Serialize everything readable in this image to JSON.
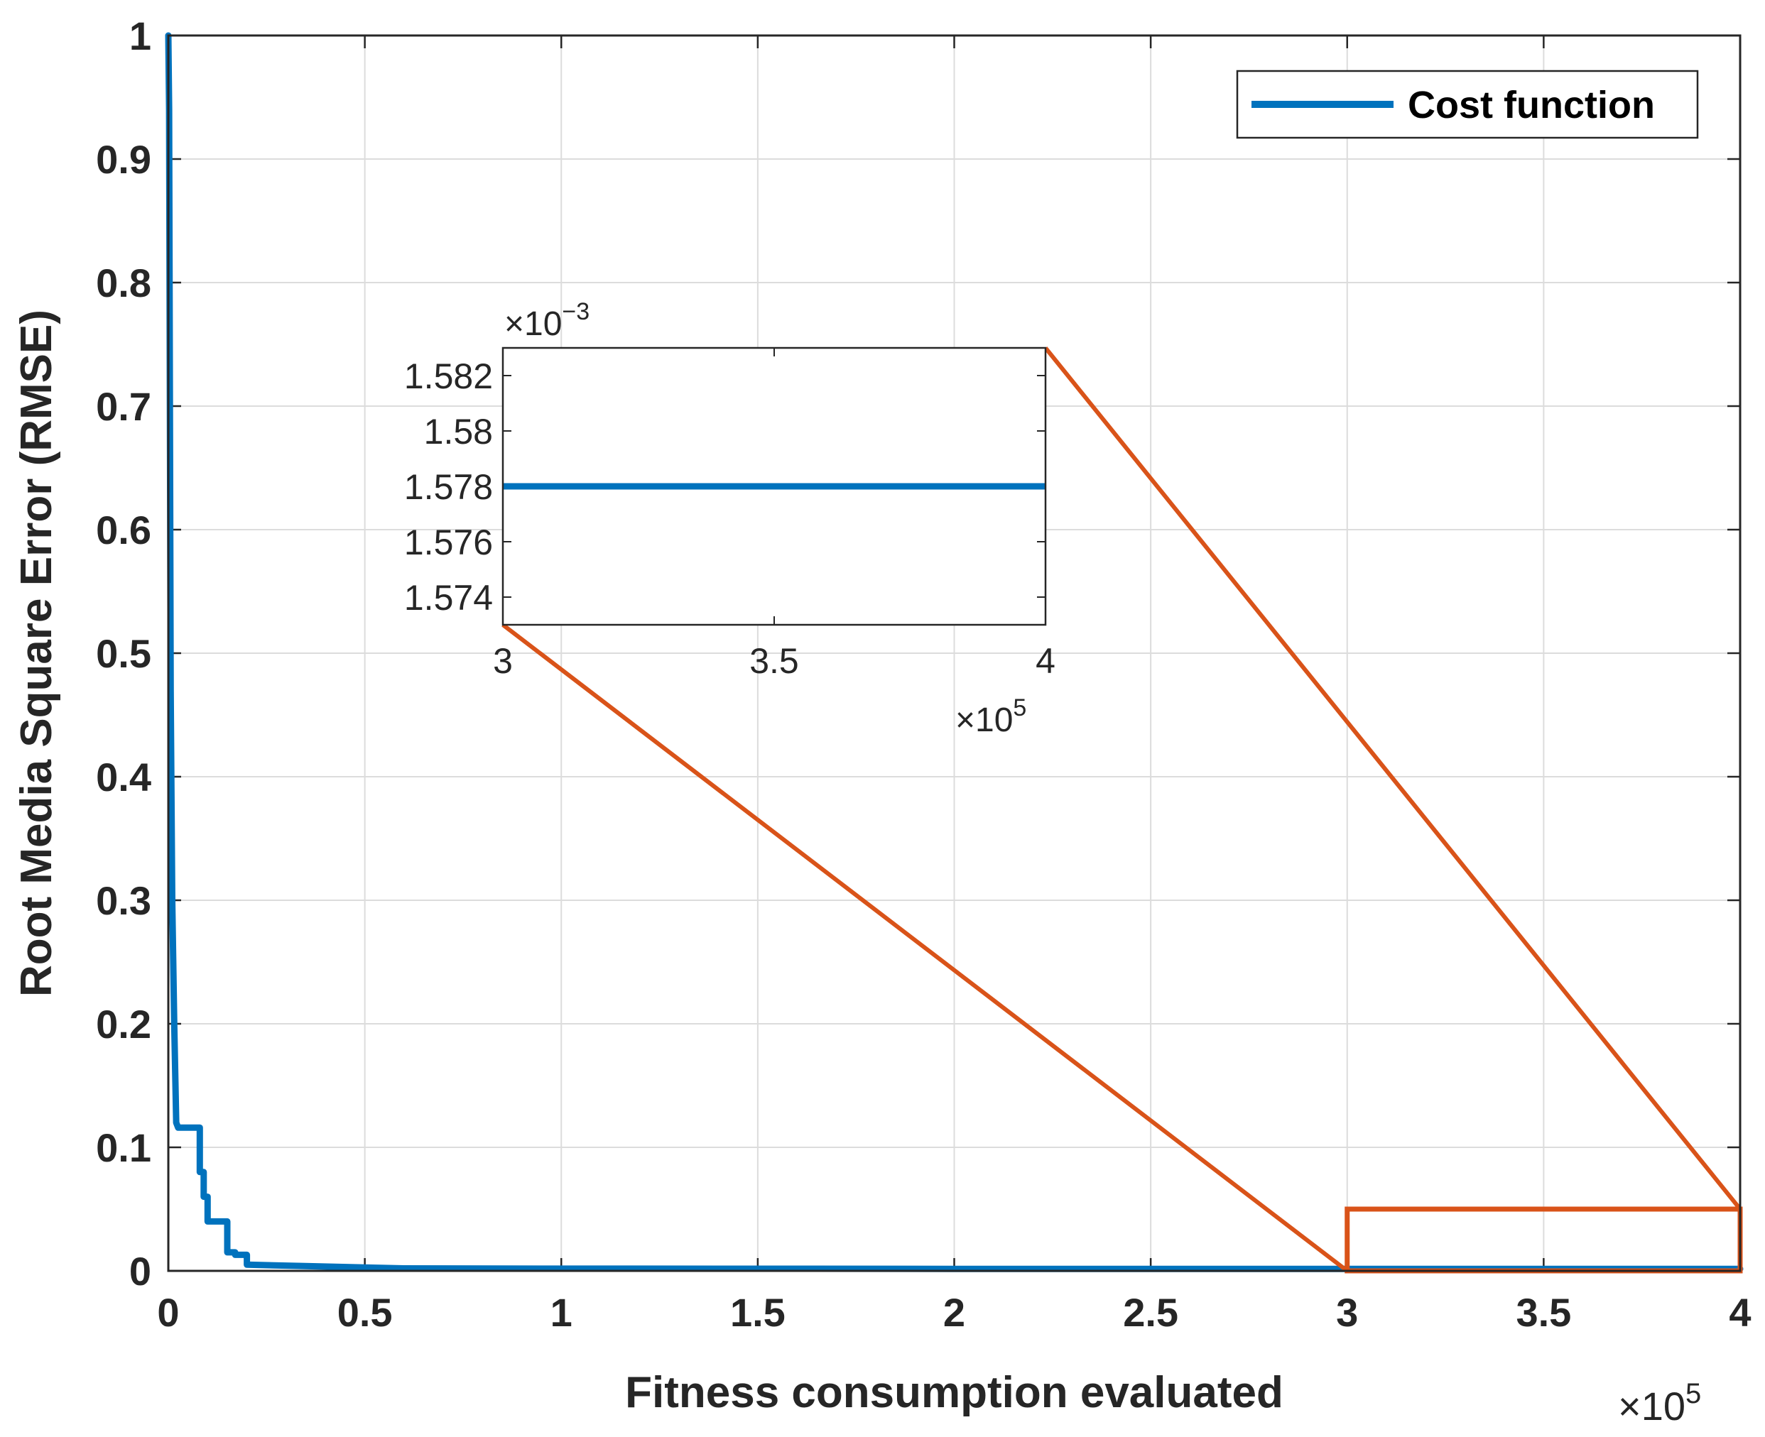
{
  "chart_data": [
    {
      "type": "line",
      "role": "main",
      "xlabel": "Fitness consumption evaluated",
      "ylabel": "Root Media Square Error (RMSE)",
      "x_multiplier": "×10",
      "x_multiplier_exp": "5",
      "xlim": [
        0,
        4
      ],
      "ylim": [
        0,
        1
      ],
      "grid": true,
      "x_ticks": [
        0,
        0.5,
        1,
        1.5,
        2,
        2.5,
        3,
        3.5,
        4
      ],
      "x_tick_labels": [
        "0",
        "0.5",
        "1",
        "1.5",
        "2",
        "2.5",
        "3",
        "3.5",
        "4"
      ],
      "y_ticks": [
        0,
        0.1,
        0.2,
        0.3,
        0.4,
        0.5,
        0.6,
        0.7,
        0.8,
        0.9,
        1
      ],
      "y_tick_labels": [
        "0",
        "0.1",
        "0.2",
        "0.3",
        "0.4",
        "0.5",
        "0.6",
        "0.7",
        "0.8",
        "0.9",
        "1"
      ],
      "legend": {
        "label": "Cost function",
        "position": "top-right"
      },
      "series": [
        {
          "name": "Cost function",
          "color": "#0072BD",
          "x": [
            0,
            0.002,
            0.004,
            0.006,
            0.01,
            0.015,
            0.02,
            0.025,
            0.03,
            0.08,
            0.08,
            0.09,
            0.09,
            0.1,
            0.1,
            0.15,
            0.15,
            0.17,
            0.17,
            0.2,
            0.2,
            0.6,
            1.0,
            1.5,
            2.0,
            2.5,
            3.0,
            3.5,
            4.0
          ],
          "y": [
            1.0,
            0.94,
            0.7,
            0.47,
            0.3,
            0.2,
            0.12,
            0.116,
            0.116,
            0.116,
            0.08,
            0.08,
            0.06,
            0.06,
            0.04,
            0.04,
            0.015,
            0.015,
            0.013,
            0.013,
            0.005,
            0.002,
            0.0018,
            0.0017,
            0.0016,
            0.0016,
            0.0016,
            0.0016,
            0.0016
          ]
        }
      ],
      "zoom_box": {
        "x": [
          3,
          4
        ],
        "y": [
          0,
          0.05
        ],
        "color": "#D95319"
      }
    },
    {
      "type": "line",
      "role": "inset",
      "xlim": [
        3,
        4
      ],
      "ylim": [
        1.573,
        1.583
      ],
      "x_ticks": [
        3,
        3.5,
        4
      ],
      "x_tick_labels": [
        "3",
        "3.5",
        "4"
      ],
      "y_ticks": [
        1.574,
        1.576,
        1.578,
        1.58,
        1.582
      ],
      "y_tick_labels": [
        "1.574",
        "1.576",
        "1.578",
        "1.58",
        "1.582"
      ],
      "x_multiplier": "×10",
      "x_multiplier_exp": "5",
      "y_multiplier": "×10",
      "y_multiplier_exp": "−3",
      "series": [
        {
          "name": "Cost function",
          "color": "#0072BD",
          "x": [
            3,
            4
          ],
          "y": [
            1.578,
            1.578
          ]
        }
      ]
    }
  ]
}
